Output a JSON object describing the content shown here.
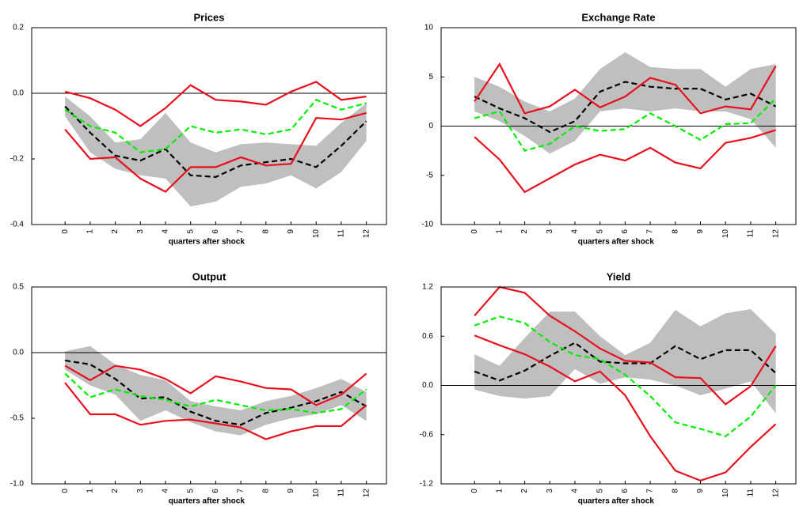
{
  "chart_data": [
    {
      "type": "line",
      "title": "Prices",
      "x_label": "quarters after shock",
      "x": [
        0,
        1,
        2,
        3,
        4,
        5,
        6,
        7,
        8,
        9,
        10,
        11,
        12
      ],
      "xlim": [
        -1.33,
        12.8
      ],
      "xticks": [
        0,
        1,
        2,
        3,
        4,
        5,
        6,
        7,
        8,
        9,
        10,
        11,
        12
      ],
      "ylim": [
        -0.4,
        0.2
      ],
      "yticks": [
        -0.4,
        -0.2,
        {
          "value": 0,
          "label": "0.0"
        },
        0.2
      ],
      "zero_line": true,
      "band": {
        "color": "#bfbfbf",
        "lower": [
          -0.07,
          -0.18,
          -0.23,
          -0.25,
          -0.26,
          -0.345,
          -0.33,
          -0.285,
          -0.275,
          -0.25,
          -0.29,
          -0.24,
          -0.145
        ],
        "upper": [
          -0.01,
          -0.07,
          -0.15,
          -0.14,
          -0.06,
          -0.15,
          -0.18,
          -0.155,
          -0.15,
          -0.155,
          -0.16,
          -0.09,
          -0.03
        ]
      },
      "series": [
        {
          "color": "#000000",
          "dashed": true,
          "values": [
            -0.04,
            -0.12,
            -0.19,
            -0.205,
            -0.17,
            -0.25,
            -0.255,
            -0.22,
            -0.21,
            -0.2,
            -0.225,
            -0.16,
            -0.085
          ]
        },
        {
          "color": "#00ee00",
          "dashed": true,
          "values": [
            -0.05,
            -0.1,
            -0.12,
            -0.18,
            -0.17,
            -0.1,
            -0.12,
            -0.11,
            -0.125,
            -0.11,
            -0.02,
            -0.05,
            -0.03
          ]
        },
        {
          "color": "#e8101e",
          "dashed": false,
          "values": [
            0.005,
            -0.015,
            -0.05,
            -0.1,
            -0.045,
            0.025,
            -0.02,
            -0.025,
            -0.035,
            0.005,
            0.035,
            -0.02,
            -0.01
          ]
        },
        {
          "color": "#e8101e",
          "dashed": false,
          "values": [
            -0.11,
            -0.2,
            -0.195,
            -0.26,
            -0.3,
            -0.225,
            -0.225,
            -0.195,
            -0.22,
            -0.215,
            -0.075,
            -0.08,
            -0.06
          ]
        }
      ]
    },
    {
      "type": "line",
      "title": "Exchange Rate",
      "x_label": "quarters after shock",
      "x": [
        0,
        1,
        2,
        3,
        4,
        5,
        6,
        7,
        8,
        9,
        10,
        11,
        12
      ],
      "xlim": [
        -1.33,
        12.8
      ],
      "xticks": [
        0,
        1,
        2,
        3,
        4,
        5,
        6,
        7,
        8,
        9,
        10,
        11,
        12
      ],
      "ylim": [
        -10,
        10
      ],
      "yticks": [
        -10,
        -5,
        0,
        5,
        10
      ],
      "zero_line": true,
      "band": {
        "color": "#bfbfbf",
        "lower": [
          1.5,
          0.5,
          -1,
          -2.8,
          -1.5,
          1.5,
          1.8,
          1.5,
          1.8,
          1.5,
          1.5,
          0.7,
          -2.2
        ],
        "upper": [
          5,
          4,
          2.5,
          1.5,
          2.8,
          5.8,
          7.5,
          6,
          5.8,
          5.8,
          4,
          5.8,
          6.3
        ]
      },
      "series": [
        {
          "color": "#000000",
          "dashed": true,
          "values": [
            3,
            1.8,
            0.8,
            -0.6,
            0.5,
            3.5,
            4.5,
            4,
            3.8,
            3.8,
            2.7,
            3.3,
            2
          ]
        },
        {
          "color": "#00ee00",
          "dashed": true,
          "values": [
            0.8,
            1.5,
            -2.5,
            -1.8,
            0,
            -0.5,
            -0.3,
            1.3,
            0,
            -1.4,
            0.2,
            0.3,
            2.8
          ]
        },
        {
          "color": "#e8101e",
          "dashed": false,
          "values": [
            2.5,
            6.3,
            1.3,
            2,
            3.7,
            1.9,
            3,
            4.9,
            4.2,
            1.3,
            2,
            1.7,
            6.1
          ]
        },
        {
          "color": "#e8101e",
          "dashed": false,
          "values": [
            -1.1,
            -3.4,
            -6.7,
            -5.3,
            -3.9,
            -2.9,
            -3.5,
            -2.2,
            -3.7,
            -4.3,
            -1.7,
            -1.2,
            -0.4
          ]
        }
      ]
    },
    {
      "type": "line",
      "title": "Output",
      "x_label": "quarters after shock",
      "x": [
        0,
        1,
        2,
        3,
        4,
        5,
        6,
        7,
        8,
        9,
        10,
        11,
        12
      ],
      "xlim": [
        -1.33,
        12.8
      ],
      "xticks": [
        0,
        1,
        2,
        3,
        4,
        5,
        6,
        7,
        8,
        9,
        10,
        11,
        12
      ],
      "ylim": [
        -1,
        0.5
      ],
      "yticks": [
        {
          "value": -1,
          "label": "-1.0"
        },
        -0.5,
        {
          "value": 0,
          "label": "0.0"
        },
        0.5
      ],
      "zero_line": true,
      "band": {
        "color": "#bfbfbf",
        "lower": [
          -0.13,
          -0.25,
          -0.32,
          -0.52,
          -0.44,
          -0.53,
          -0.6,
          -0.63,
          -0.55,
          -0.5,
          -0.47,
          -0.4,
          -0.52
        ],
        "upper": [
          0.01,
          0.05,
          -0.09,
          -0.17,
          -0.21,
          -0.37,
          -0.41,
          -0.44,
          -0.37,
          -0.33,
          -0.27,
          -0.2,
          -0.3
        ]
      },
      "series": [
        {
          "color": "#000000",
          "dashed": true,
          "values": [
            -0.06,
            -0.09,
            -0.2,
            -0.35,
            -0.34,
            -0.45,
            -0.52,
            -0.55,
            -0.46,
            -0.42,
            -0.37,
            -0.3,
            -0.41
          ]
        },
        {
          "color": "#00ee00",
          "dashed": true,
          "values": [
            -0.16,
            -0.34,
            -0.28,
            -0.33,
            -0.36,
            -0.41,
            -0.36,
            -0.4,
            -0.44,
            -0.43,
            -0.46,
            -0.43,
            -0.28
          ]
        },
        {
          "color": "#e8101e",
          "dashed": false,
          "values": [
            -0.1,
            -0.21,
            -0.1,
            -0.13,
            -0.2,
            -0.31,
            -0.18,
            -0.22,
            -0.27,
            -0.28,
            -0.4,
            -0.32,
            -0.16
          ]
        },
        {
          "color": "#e8101e",
          "dashed": false,
          "values": [
            -0.23,
            -0.47,
            -0.47,
            -0.55,
            -0.52,
            -0.51,
            -0.54,
            -0.57,
            -0.66,
            -0.6,
            -0.56,
            -0.56,
            -0.4
          ]
        }
      ]
    },
    {
      "type": "line",
      "title": "Yield",
      "x_label": "quarters after shock",
      "x": [
        0,
        1,
        2,
        3,
        4,
        5,
        6,
        7,
        8,
        9,
        10,
        11,
        12
      ],
      "xlim": [
        -1.33,
        12.8
      ],
      "xticks": [
        0,
        1,
        2,
        3,
        4,
        5,
        6,
        7,
        8,
        9,
        10,
        11,
        12
      ],
      "ylim": [
        -1.2,
        1.2
      ],
      "yticks": [
        -1.2,
        -0.6,
        {
          "value": 0,
          "label": "0.0"
        },
        0.6,
        1.2
      ],
      "zero_line": true,
      "band": {
        "color": "#bfbfbf",
        "lower": [
          -0.05,
          -0.13,
          -0.16,
          -0.13,
          0.2,
          0.02,
          0.1,
          0.07,
          0,
          -0.12,
          -0.04,
          0.05,
          -0.34
        ],
        "upper": [
          0.38,
          0.24,
          0.58,
          0.9,
          0.9,
          0.6,
          0.37,
          0.52,
          0.92,
          0.72,
          0.88,
          0.93,
          0.63
        ]
      },
      "series": [
        {
          "color": "#000000",
          "dashed": true,
          "values": [
            0.17,
            0.06,
            0.18,
            0.36,
            0.52,
            0.29,
            0.27,
            0.27,
            0.48,
            0.32,
            0.43,
            0.43,
            0.15
          ]
        },
        {
          "color": "#00ee00",
          "dashed": true,
          "values": [
            0.73,
            0.84,
            0.76,
            0.53,
            0.37,
            0.32,
            0.13,
            -0.13,
            -0.45,
            -0.53,
            -0.62,
            -0.38,
            0
          ]
        },
        {
          "color": "#e8101e",
          "dashed": false,
          "values": [
            0.85,
            1.2,
            1.13,
            0.85,
            0.66,
            0.45,
            0.3,
            0.28,
            0.1,
            0.09,
            -0.23,
            -0.01,
            0.48
          ]
        },
        {
          "color": "#e8101e",
          "dashed": false,
          "values": [
            0.61,
            0.49,
            0.38,
            0.23,
            0.05,
            0.17,
            -0.12,
            -0.62,
            -1.04,
            -1.16,
            -1.06,
            -0.75,
            -0.47
          ]
        }
      ]
    }
  ]
}
